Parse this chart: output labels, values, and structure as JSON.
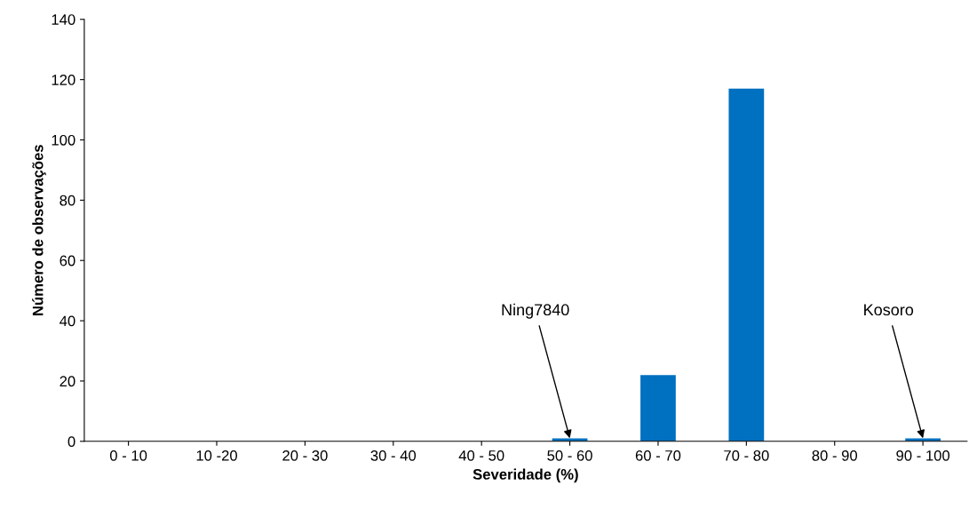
{
  "chart_data": {
    "type": "bar",
    "xlabel": "Severidade (%)",
    "ylabel": "Número de observações",
    "categories": [
      "0 - 10",
      "10 -20",
      "20 - 30",
      "30 - 40",
      "40 - 50",
      "50 - 60",
      "60 - 70",
      "70 - 80",
      "80 - 90",
      "90 - 100"
    ],
    "values": [
      0,
      0,
      0,
      0,
      0,
      1,
      22,
      117,
      0,
      1
    ],
    "color": "#0070c0",
    "ylim": [
      0,
      140
    ],
    "yticks": [
      0,
      20,
      40,
      60,
      80,
      100,
      120,
      140
    ],
    "grid": false,
    "legend": false,
    "annotations": [
      {
        "text": "Ning7840",
        "x": "50 - 60",
        "y": 1
      },
      {
        "text": "Kosoro",
        "x": "90 - 100",
        "y": 1
      }
    ]
  }
}
